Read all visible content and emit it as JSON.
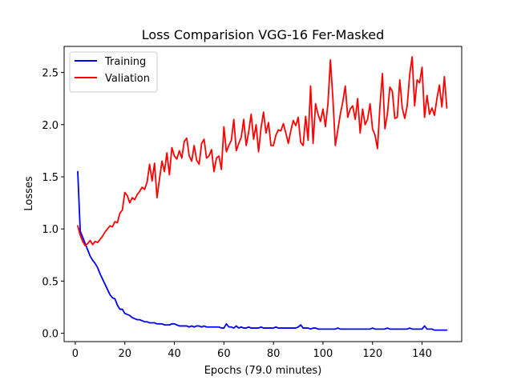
{
  "chart_data": {
    "type": "line",
    "title": "Loss Comparision VGG-16 Fer-Masked",
    "xlabel": "Epochs (79.0 minutes)",
    "ylabel": "Losses",
    "xlim": [
      -4.5,
      156
    ],
    "ylim": [
      -0.08,
      2.75
    ],
    "xticks": [
      0,
      20,
      40,
      60,
      80,
      100,
      120,
      140
    ],
    "yticks": [
      0.0,
      0.5,
      1.0,
      1.5,
      2.0,
      2.5
    ],
    "ytick_labels": [
      "0.0",
      "0.5",
      "1.0",
      "1.5",
      "2.0",
      "2.5"
    ],
    "grid": false,
    "legend_position": "upper-left",
    "x": [
      1,
      2,
      3,
      4,
      5,
      6,
      7,
      8,
      9,
      10,
      11,
      12,
      13,
      14,
      15,
      16,
      17,
      18,
      19,
      20,
      21,
      22,
      23,
      24,
      25,
      26,
      27,
      28,
      29,
      30,
      31,
      32,
      33,
      34,
      35,
      36,
      37,
      38,
      39,
      40,
      41,
      42,
      43,
      44,
      45,
      46,
      47,
      48,
      49,
      50,
      51,
      52,
      53,
      54,
      55,
      56,
      57,
      58,
      59,
      60,
      61,
      62,
      63,
      64,
      65,
      66,
      67,
      68,
      69,
      70,
      71,
      72,
      73,
      74,
      75,
      76,
      77,
      78,
      79,
      80,
      81,
      82,
      83,
      84,
      85,
      86,
      87,
      88,
      89,
      90,
      91,
      92,
      93,
      94,
      95,
      96,
      97,
      98,
      99,
      100,
      101,
      102,
      103,
      104,
      105,
      106,
      107,
      108,
      109,
      110,
      111,
      112,
      113,
      114,
      115,
      116,
      117,
      118,
      119,
      120,
      121,
      122,
      123,
      124,
      125,
      126,
      127,
      128,
      129,
      130,
      131,
      132,
      133,
      134,
      135,
      136,
      137,
      138,
      139,
      140,
      141,
      142,
      143,
      144,
      145,
      146,
      147,
      148,
      149,
      150
    ],
    "series": [
      {
        "name": "Training",
        "color": "#0000ff",
        "values": [
          1.55,
          0.98,
          0.92,
          0.86,
          0.8,
          0.74,
          0.7,
          0.67,
          0.63,
          0.57,
          0.52,
          0.47,
          0.42,
          0.37,
          0.34,
          0.33,
          0.27,
          0.23,
          0.23,
          0.19,
          0.18,
          0.17,
          0.15,
          0.14,
          0.13,
          0.13,
          0.12,
          0.11,
          0.11,
          0.1,
          0.1,
          0.1,
          0.09,
          0.09,
          0.09,
          0.08,
          0.08,
          0.08,
          0.09,
          0.09,
          0.08,
          0.07,
          0.07,
          0.07,
          0.07,
          0.06,
          0.07,
          0.06,
          0.07,
          0.07,
          0.06,
          0.07,
          0.06,
          0.06,
          0.06,
          0.06,
          0.06,
          0.06,
          0.05,
          0.05,
          0.09,
          0.06,
          0.06,
          0.05,
          0.07,
          0.05,
          0.06,
          0.05,
          0.05,
          0.06,
          0.05,
          0.05,
          0.05,
          0.05,
          0.06,
          0.05,
          0.05,
          0.05,
          0.05,
          0.05,
          0.06,
          0.05,
          0.05,
          0.05,
          0.05,
          0.05,
          0.05,
          0.05,
          0.05,
          0.06,
          0.08,
          0.05,
          0.05,
          0.05,
          0.04,
          0.05,
          0.05,
          0.04,
          0.04,
          0.04,
          0.04,
          0.04,
          0.04,
          0.04,
          0.04,
          0.05,
          0.04,
          0.04,
          0.04,
          0.04,
          0.04,
          0.04,
          0.04,
          0.04,
          0.04,
          0.04,
          0.04,
          0.04,
          0.04,
          0.05,
          0.04,
          0.04,
          0.04,
          0.04,
          0.04,
          0.05,
          0.04,
          0.04,
          0.04,
          0.04,
          0.04,
          0.04,
          0.04,
          0.04,
          0.05,
          0.04,
          0.04,
          0.04,
          0.04,
          0.04,
          0.07,
          0.04,
          0.04,
          0.04,
          0.03,
          0.03,
          0.03,
          0.03,
          0.03,
          0.03
        ]
      },
      {
        "name": "Valiation",
        "color": "#ff0000",
        "values": [
          1.03,
          0.94,
          0.88,
          0.84,
          0.86,
          0.89,
          0.85,
          0.88,
          0.87,
          0.9,
          0.93,
          0.97,
          1.0,
          1.03,
          1.02,
          1.07,
          1.06,
          1.15,
          1.18,
          1.35,
          1.32,
          1.25,
          1.3,
          1.28,
          1.33,
          1.36,
          1.4,
          1.38,
          1.45,
          1.62,
          1.46,
          1.63,
          1.3,
          1.48,
          1.65,
          1.55,
          1.73,
          1.52,
          1.78,
          1.7,
          1.67,
          1.75,
          1.68,
          1.84,
          1.87,
          1.7,
          1.65,
          1.8,
          1.66,
          1.62,
          1.82,
          1.86,
          1.68,
          1.7,
          1.76,
          1.55,
          1.68,
          1.7,
          1.57,
          1.98,
          1.74,
          1.8,
          1.85,
          2.05,
          1.75,
          1.82,
          1.88,
          2.05,
          1.8,
          1.93,
          2.1,
          1.86,
          2.0,
          1.74,
          1.97,
          2.12,
          1.92,
          2.02,
          1.8,
          1.8,
          1.9,
          1.95,
          1.94,
          2.01,
          1.92,
          1.82,
          1.94,
          2.04,
          1.99,
          2.07,
          1.83,
          1.8,
          2.08,
          1.85,
          2.37,
          1.82,
          2.2,
          2.1,
          2.03,
          2.15,
          1.98,
          2.2,
          2.62,
          2.25,
          1.8,
          1.95,
          2.1,
          2.22,
          2.37,
          2.07,
          2.15,
          2.18,
          2.05,
          2.25,
          1.92,
          2.15,
          2.0,
          2.05,
          2.2,
          1.96,
          1.9,
          1.77,
          2.18,
          2.49,
          1.96,
          2.1,
          2.36,
          2.32,
          2.06,
          2.07,
          2.43,
          2.16,
          2.06,
          2.18,
          2.48,
          2.65,
          2.18,
          2.43,
          2.4,
          2.55,
          2.07,
          2.28,
          2.1,
          2.16,
          2.09,
          2.25,
          2.38,
          2.17,
          2.46,
          2.16
        ]
      }
    ]
  }
}
